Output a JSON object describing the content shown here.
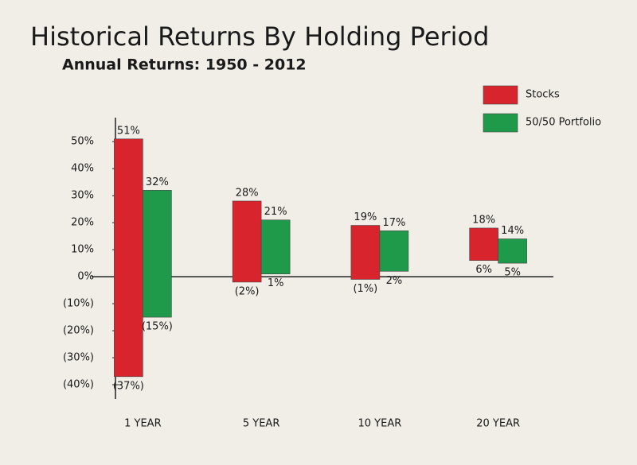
{
  "chart_data": {
    "type": "rangebar",
    "title": "Historical Returns By Holding Period",
    "subtitle": "Annual Returns: 1950 - 2012",
    "categories": [
      "1 YEAR",
      "5 YEAR",
      "10 YEAR",
      "20 YEAR"
    ],
    "series": [
      {
        "name": "Stocks",
        "color": "#d8252d",
        "high": [
          51,
          28,
          19,
          18
        ],
        "high_labels": [
          "51%",
          "28%",
          "19%",
          "18%"
        ],
        "low": [
          -37,
          -2,
          -1,
          6
        ],
        "low_labels": [
          "(37%)",
          "(2%)",
          "(1%)",
          "6%"
        ]
      },
      {
        "name": "50/50 Portfolio",
        "color": "#1f9a4a",
        "high": [
          32,
          21,
          17,
          14
        ],
        "high_labels": [
          "32%",
          "21%",
          "17%",
          "14%"
        ],
        "low": [
          -15,
          1,
          2,
          5
        ],
        "low_labels": [
          "(15%)",
          "1%",
          "2%",
          "5%"
        ]
      }
    ],
    "ylim": [
      -45,
      58
    ],
    "yticks": [
      {
        "value": 50,
        "label": "50%"
      },
      {
        "value": 40,
        "label": "40%"
      },
      {
        "value": 30,
        "label": "30%"
      },
      {
        "value": 20,
        "label": "20%"
      },
      {
        "value": 10,
        "label": "10%"
      },
      {
        "value": 0,
        "label": "0%"
      },
      {
        "value": -10,
        "label": "(10%)"
      },
      {
        "value": -20,
        "label": "(20%)"
      },
      {
        "value": -30,
        "label": "(30%)"
      },
      {
        "value": -40,
        "label": "(40%)"
      }
    ],
    "legend": "top-right"
  }
}
